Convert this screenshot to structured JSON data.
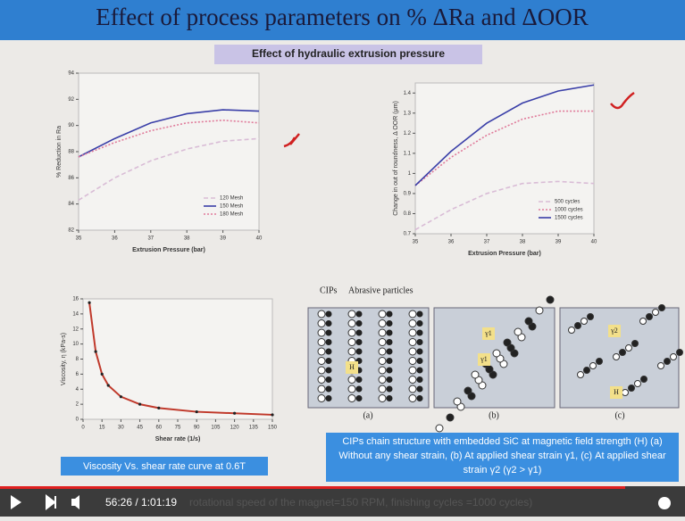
{
  "slide": {
    "title": "Effect of process parameters on % ΔRa and ΔOOR",
    "subtitle": "Effect of hydraulic extrusion pressure",
    "charts": [
      {
        "type": "line",
        "x_label": "Extrusion Pressure (bar)",
        "y_label": "% Reduction in Ra",
        "x": [
          35,
          36,
          37,
          38,
          39,
          40
        ],
        "xlim": [
          35,
          40
        ],
        "xticks": [
          35,
          36,
          37,
          38,
          39,
          40
        ],
        "ylim": [
          82,
          94
        ],
        "yticks": [
          82,
          84,
          86,
          88,
          90,
          92,
          94
        ],
        "legend": "lower right",
        "series": [
          {
            "name": "120 Mesh",
            "color": "#d9bcd6",
            "style": "dashed",
            "values": [
              84.3,
              86.0,
              87.3,
              88.2,
              88.8,
              89.0
            ]
          },
          {
            "name": "150 Mesh",
            "color": "#3a3fa8",
            "style": "solid",
            "values": [
              87.6,
              89.0,
              90.2,
              90.9,
              91.2,
              91.1
            ]
          },
          {
            "name": "180 Mesh",
            "color": "#e07a9a",
            "style": "dotted",
            "values": [
              87.6,
              88.7,
              89.6,
              90.2,
              90.4,
              90.2
            ]
          }
        ]
      },
      {
        "type": "line",
        "x_label": "Extrusion Pressure (bar)",
        "y_label": "Change in out of roundness, Δ OOR (μm)",
        "x": [
          35,
          36,
          37,
          38,
          39,
          40
        ],
        "xlim": [
          35,
          40
        ],
        "xticks": [
          35,
          36,
          37,
          38,
          39,
          40
        ],
        "ylim": [
          0.7,
          1.45
        ],
        "yticks": [
          0.7,
          0.8,
          0.9,
          1.0,
          1.1,
          1.2,
          1.3,
          1.4
        ],
        "legend": "lower right",
        "series": [
          {
            "name": "500 cycles",
            "color": "#d9bcd6",
            "style": "dashed",
            "values": [
              0.72,
              0.82,
              0.9,
              0.95,
              0.96,
              0.95
            ]
          },
          {
            "name": "1000 cycles",
            "color": "#e07a9a",
            "style": "dotted",
            "values": [
              0.94,
              1.08,
              1.19,
              1.27,
              1.31,
              1.31
            ]
          },
          {
            "name": "1500 cycles",
            "color": "#3a3fa8",
            "style": "solid",
            "values": [
              0.94,
              1.11,
              1.25,
              1.35,
              1.41,
              1.44
            ]
          }
        ]
      },
      {
        "type": "line",
        "x_label": "Shear rate (1/s)",
        "y_label": "Viscosity, η (kPa-s)",
        "x": [
          5,
          10,
          15,
          20,
          30,
          45,
          60,
          90,
          120,
          150
        ],
        "xlim": [
          0,
          150
        ],
        "xticks": [
          0,
          15,
          30,
          45,
          60,
          75,
          90,
          105,
          120,
          135,
          150
        ],
        "ylim": [
          0,
          16
        ],
        "yticks": [
          0,
          2,
          4,
          6,
          8,
          10,
          12,
          14,
          16
        ],
        "markers": true,
        "series": [
          {
            "color": "#c0392b",
            "style": "solid",
            "values": [
              15.5,
              9,
              6,
              4.5,
              3,
              2,
              1.5,
              1,
              0.8,
              0.6
            ]
          }
        ]
      }
    ],
    "diagram": {
      "labels": [
        "CIPs",
        "Abrasive particles"
      ],
      "panels": [
        "(a)",
        "(b)",
        "(c)"
      ],
      "symbols": [
        "H",
        "γ1",
        "γ2"
      ],
      "caption": "CIPs chain structure with embedded SiC at magnetic field strength (H) (a) Without any shear strain, (b) At applied shear strain γ1, (c) At applied shear strain γ2 (γ2 > γ1)"
    },
    "caption": "Viscosity Vs. shear rate curve at 0.6T"
  },
  "player": {
    "time": "56:26 / 1:01:19",
    "overlay_text": "rotational speed of the magnet=150 RPM, finishing cycles =1000 cycles)"
  }
}
